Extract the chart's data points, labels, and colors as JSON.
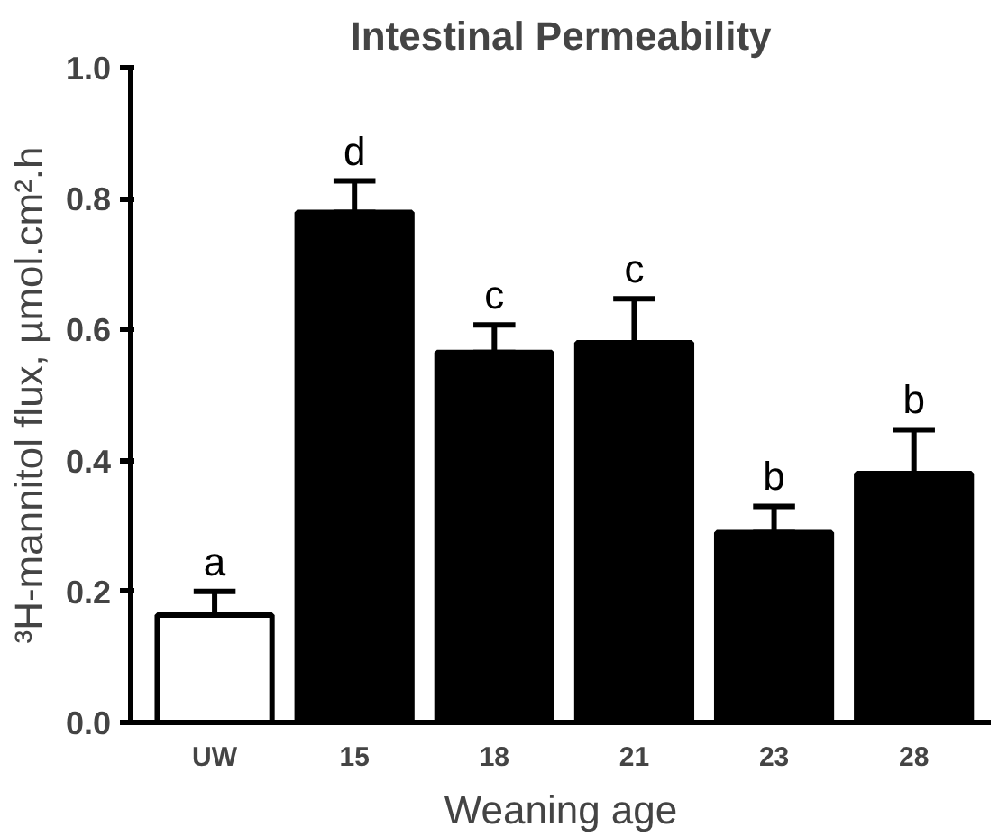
{
  "chart_data": {
    "type": "bar",
    "title": "Intestinal Permeability",
    "xlabel": "Weaning age",
    "ylabel": "³H-mannitol flux, µmol.cm².h",
    "categories": [
      "UW",
      "15",
      "18",
      "21",
      "23",
      "28"
    ],
    "values": [
      0.164,
      0.779,
      0.565,
      0.58,
      0.29,
      0.38
    ],
    "colors": [
      "#ffffff",
      "#000000",
      "#000000",
      "#000000",
      "#000000",
      "#000000"
    ],
    "errors": [
      [
        0.164,
        0.2
      ],
      [
        0.779,
        0.827
      ],
      [
        0.565,
        0.607
      ],
      [
        0.58,
        0.647
      ],
      [
        0.29,
        0.33
      ],
      [
        0.38,
        0.447
      ]
    ],
    "ylim": [
      0,
      1.0
    ],
    "yticks": [
      {
        "value": 0,
        "label": "0.0"
      },
      {
        "value": 0.2,
        "label": "0.2"
      },
      {
        "value": 0.4,
        "label": "0.4"
      },
      {
        "value": 0.6,
        "label": "0.6"
      },
      {
        "value": 0.8,
        "label": "0.8"
      },
      {
        "value": 1.0,
        "label": "1.0"
      }
    ],
    "grid": false,
    "annotations": [
      {
        "text": "a",
        "x": "UW",
        "y": 0.2
      },
      {
        "text": "d",
        "x": "15",
        "y": 0.827
      },
      {
        "text": "c",
        "x": "18",
        "y": 0.607
      },
      {
        "text": "c",
        "x": "21",
        "y": 0.647
      },
      {
        "text": "b",
        "x": "23",
        "y": 0.33
      },
      {
        "text": "b",
        "x": "28",
        "y": 0.447
      }
    ]
  }
}
